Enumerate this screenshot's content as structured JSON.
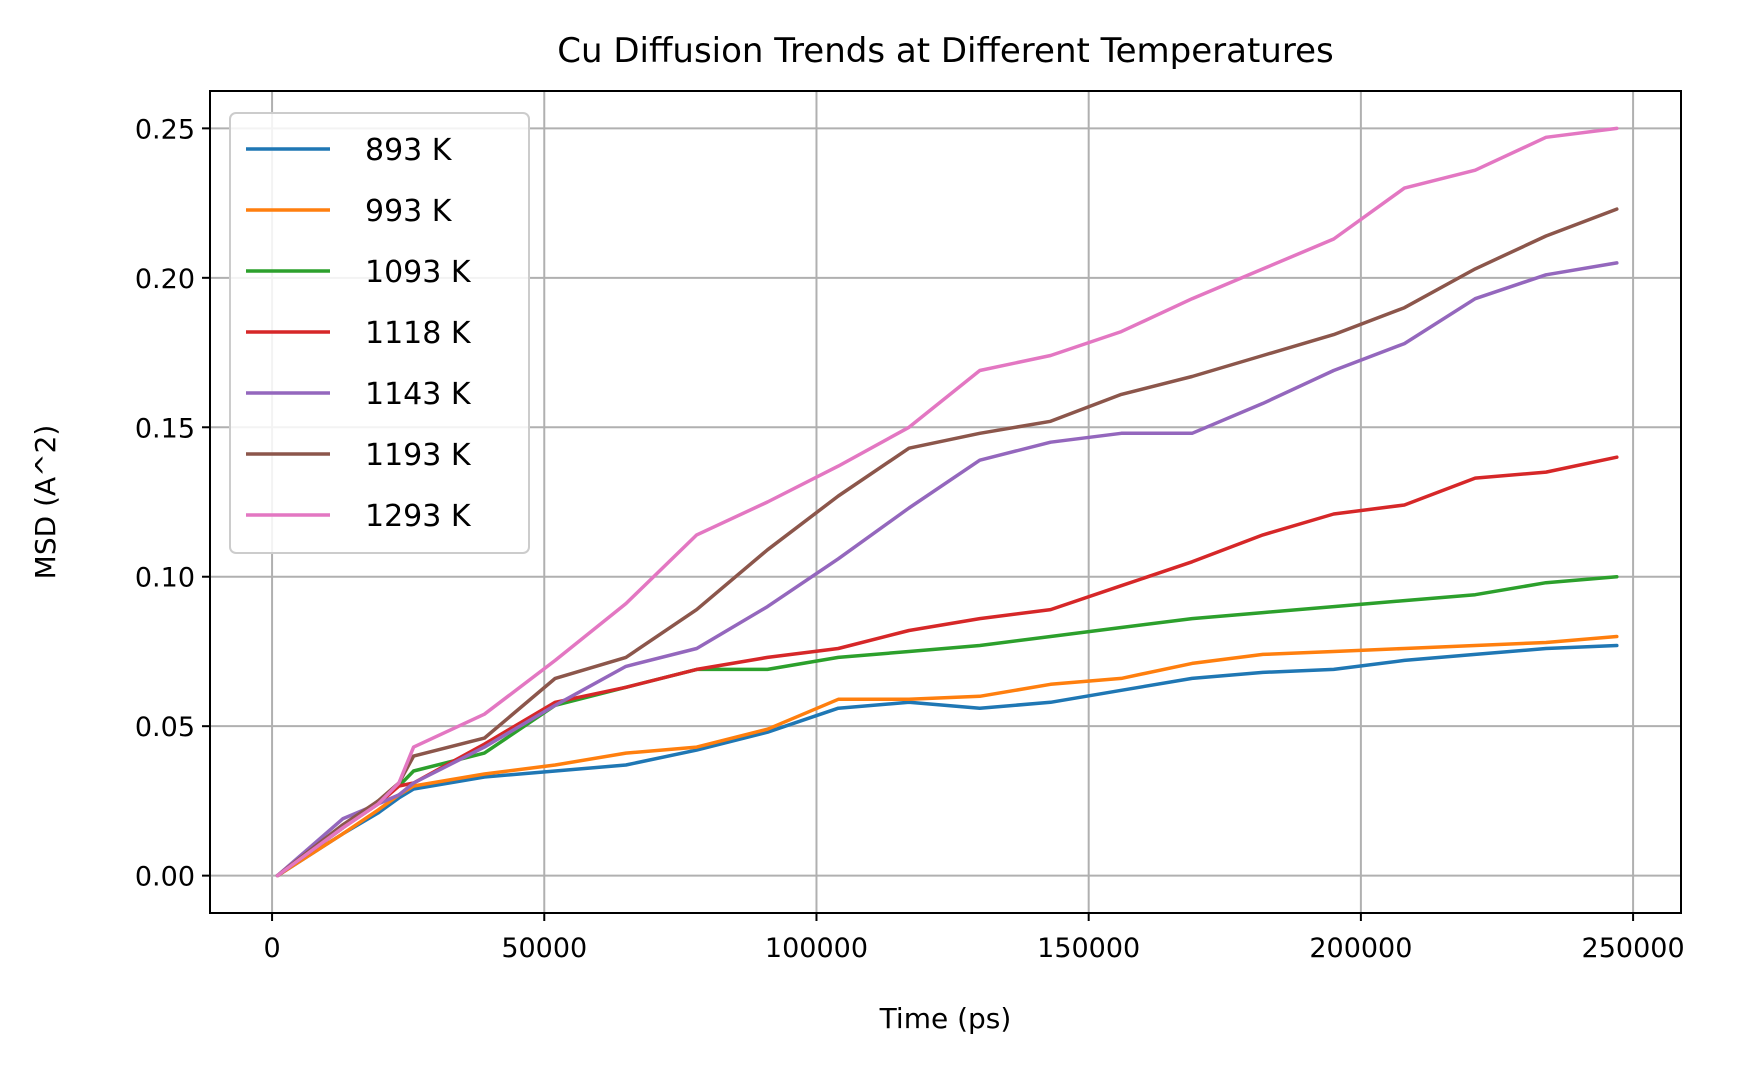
{
  "chart_data": {
    "type": "line",
    "title": "Cu Diffusion Trends at Different Temperatures",
    "xlabel": "Time (ps)",
    "ylabel": "MSD (A^2)",
    "xlim": [
      -11400,
      258800
    ],
    "ylim": [
      -0.0125,
      0.2625
    ],
    "xticks": [
      0,
      50000,
      100000,
      150000,
      200000,
      250000
    ],
    "xtick_labels": [
      "0",
      "50000",
      "100000",
      "150000",
      "200000",
      "250000"
    ],
    "yticks": [
      0.0,
      0.05,
      0.1,
      0.15,
      0.2,
      0.25
    ],
    "ytick_labels": [
      "0.00",
      "0.05",
      "0.10",
      "0.15",
      "0.20",
      "0.25"
    ],
    "grid": true,
    "legend_position": "upper-left",
    "x": [
      1000,
      13000,
      19500,
      23300,
      26000,
      39000,
      52000,
      65000,
      78000,
      91000,
      104000,
      117000,
      130000,
      143000,
      156000,
      169000,
      182000,
      195000,
      208000,
      221000,
      234000,
      247000
    ],
    "series": [
      {
        "name": "893 K",
        "color": "#1f77b4",
        "values": [
          0.0,
          0.014,
          0.021,
          0.026,
          0.029,
          0.033,
          0.035,
          0.037,
          0.042,
          0.048,
          0.056,
          0.058,
          0.056,
          0.058,
          0.062,
          0.066,
          0.068,
          0.069,
          0.072,
          0.074,
          0.076,
          0.077
        ]
      },
      {
        "name": "993 K",
        "color": "#ff7f0e",
        "values": [
          0.0,
          0.014,
          0.022,
          0.027,
          0.03,
          0.034,
          0.037,
          0.041,
          0.043,
          0.049,
          0.059,
          0.059,
          0.06,
          0.064,
          0.066,
          0.071,
          0.074,
          0.075,
          0.076,
          0.077,
          0.078,
          0.08
        ]
      },
      {
        "name": "1093 K",
        "color": "#2ca02c",
        "values": [
          0.0,
          0.016,
          0.025,
          0.03,
          0.035,
          0.041,
          0.057,
          0.063,
          0.069,
          0.069,
          0.073,
          0.075,
          0.077,
          0.08,
          0.083,
          0.086,
          0.088,
          0.09,
          0.092,
          0.094,
          0.098,
          0.1
        ]
      },
      {
        "name": "1118 K",
        "color": "#d62728",
        "values": [
          0.0,
          0.016,
          0.024,
          0.03,
          0.031,
          0.044,
          0.058,
          0.063,
          0.069,
          0.073,
          0.076,
          0.082,
          0.086,
          0.089,
          0.097,
          0.105,
          0.114,
          0.121,
          0.124,
          0.133,
          0.135,
          0.14
        ]
      },
      {
        "name": "1143 K",
        "color": "#9467bd",
        "values": [
          0.0,
          0.019,
          0.024,
          0.027,
          0.031,
          0.043,
          0.057,
          0.07,
          0.076,
          0.09,
          0.106,
          0.123,
          0.139,
          0.145,
          0.148,
          0.148,
          0.158,
          0.169,
          0.178,
          0.193,
          0.201,
          0.205
        ]
      },
      {
        "name": "1193 K",
        "color": "#8c564b",
        "values": [
          0.0,
          0.017,
          0.025,
          0.031,
          0.04,
          0.046,
          0.066,
          0.073,
          0.089,
          0.109,
          0.127,
          0.143,
          0.148,
          0.152,
          0.161,
          0.167,
          0.174,
          0.181,
          0.19,
          0.203,
          0.214,
          0.223
        ]
      },
      {
        "name": "1293 K",
        "color": "#e377c2",
        "values": [
          0.0,
          0.016,
          0.024,
          0.031,
          0.043,
          0.054,
          0.072,
          0.091,
          0.114,
          0.125,
          0.137,
          0.15,
          0.169,
          0.174,
          0.182,
          0.193,
          0.203,
          0.213,
          0.23,
          0.236,
          0.247,
          0.25
        ]
      }
    ]
  }
}
